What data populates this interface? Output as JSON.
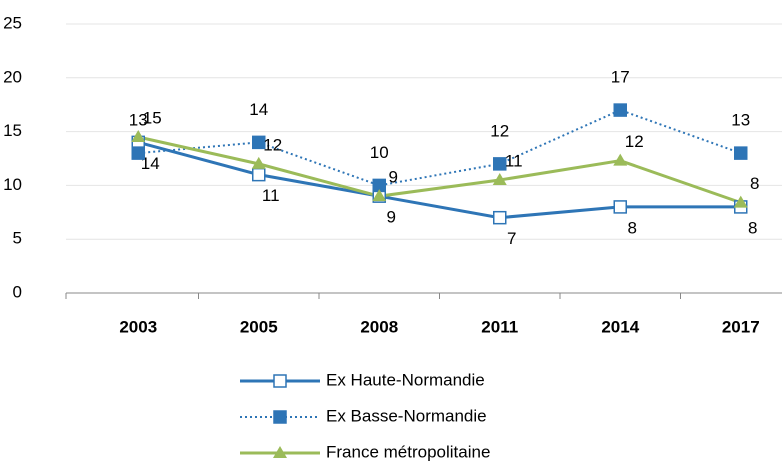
{
  "chart_data": {
    "type": "line",
    "categories": [
      "2003",
      "2005",
      "2008",
      "2011",
      "2014",
      "2017"
    ],
    "series": [
      {
        "name": "Ex Haute-Normandie",
        "color": "#2e75b6",
        "line": "solid",
        "marker": "open-square",
        "values": [
          14,
          11,
          9,
          7,
          8,
          8
        ]
      },
      {
        "name": "Ex Basse-Normandie",
        "color": "#2e75b6",
        "line": "dotted",
        "marker": "square",
        "values": [
          13,
          14,
          10,
          12,
          17,
          13
        ]
      },
      {
        "name": "France métropolitaine",
        "color": "#9bbb59",
        "line": "solid",
        "marker": "triangle",
        "values": [
          14.5,
          12,
          9,
          10.5,
          12.3,
          8.4
        ],
        "value_labels": [
          "15",
          "12",
          "9",
          "11",
          "12",
          "8"
        ]
      }
    ],
    "ylim": [
      0,
      25
    ],
    "yticks": [
      0,
      5,
      10,
      15,
      20,
      25
    ],
    "grid": true,
    "legend": "bottom"
  }
}
